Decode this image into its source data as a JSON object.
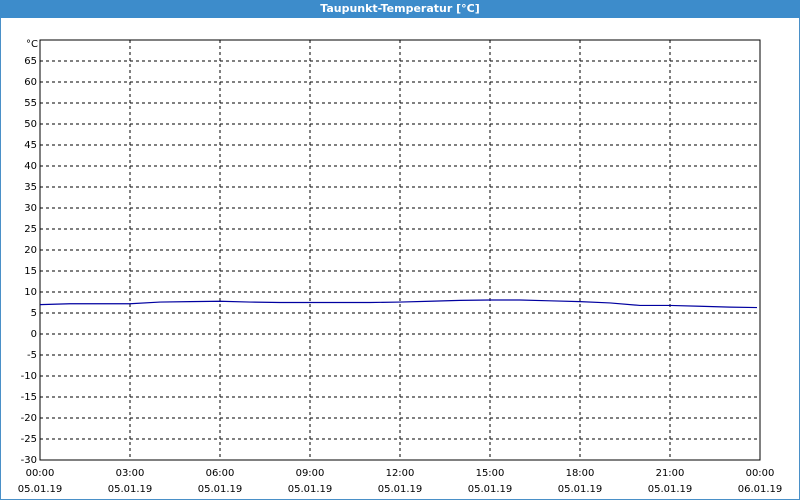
{
  "chart_data": {
    "type": "line",
    "title": "Taupunkt-Temperatur [°C]",
    "y_unit": "°C",
    "x": [
      0,
      1,
      2,
      3,
      4,
      5,
      6,
      7,
      8,
      9,
      10,
      11,
      12,
      13,
      14,
      15,
      16,
      17,
      18,
      19,
      20,
      21,
      22,
      23,
      23.9
    ],
    "series": [
      {
        "name": "Taupunkt",
        "color": "#0000a0",
        "values": [
          7,
          7.2,
          7.2,
          7.2,
          7.6,
          7.7,
          7.8,
          7.6,
          7.5,
          7.5,
          7.5,
          7.5,
          7.6,
          7.8,
          8,
          8.1,
          8.1,
          7.9,
          7.7,
          7.4,
          6.8,
          6.8,
          6.6,
          6.4,
          6.3
        ]
      }
    ],
    "xlim": [
      0,
      24
    ],
    "xticks": [
      {
        "value": 0,
        "label": "00:00"
      },
      {
        "value": 3,
        "label": "03:00"
      },
      {
        "value": 6,
        "label": "06:00"
      },
      {
        "value": 9,
        "label": "09:00"
      },
      {
        "value": 12,
        "label": "12:00"
      },
      {
        "value": 15,
        "label": "15:00"
      },
      {
        "value": 18,
        "label": "18:00"
      },
      {
        "value": 21,
        "label": "21:00"
      },
      {
        "value": 24,
        "label": "00:00"
      }
    ],
    "xtick_dates": [
      "05.01.19",
      "05.01.19",
      "05.01.19",
      "05.01.19",
      "05.01.19",
      "05.01.19",
      "05.01.19",
      "05.01.19",
      "06.01.19"
    ],
    "ylim": [
      -30,
      70
    ],
    "yticks": [
      -30,
      -25,
      -20,
      -15,
      -10,
      -5,
      0,
      5,
      10,
      15,
      20,
      25,
      30,
      35,
      40,
      45,
      50,
      55,
      60,
      65
    ],
    "grid": true
  }
}
